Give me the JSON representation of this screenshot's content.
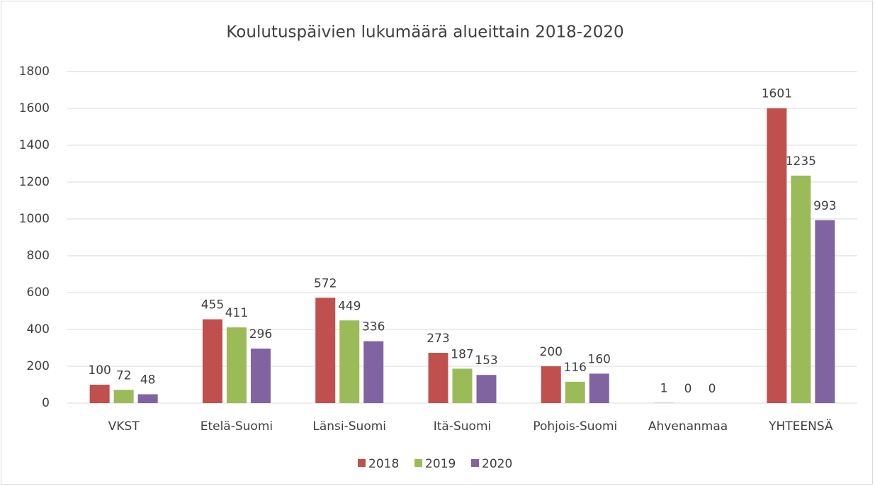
{
  "chart_data": {
    "type": "bar",
    "title": "Koulutuspäivien lukumäärä alueittain 2018-2020",
    "categories": [
      "VKST",
      "Etelä-Suomi",
      "Länsi-Suomi",
      "Itä-Suomi",
      "Pohjois-Suomi",
      "Ahvenanmaa",
      "YHTEENSÄ"
    ],
    "series": [
      {
        "name": "2018",
        "color": "#c0504d",
        "values": [
          100,
          455,
          572,
          273,
          200,
          1,
          1601
        ]
      },
      {
        "name": "2019",
        "color": "#9bbb59",
        "values": [
          72,
          411,
          449,
          187,
          116,
          0,
          1235
        ]
      },
      {
        "name": "2020",
        "color": "#8064a2",
        "values": [
          48,
          296,
          336,
          153,
          160,
          0,
          993
        ]
      }
    ],
    "ylim": [
      0,
      1800
    ],
    "yticks": [
      0,
      200,
      400,
      600,
      800,
      1000,
      1200,
      1400,
      1600,
      1800
    ],
    "grid": true,
    "legend": "bottom"
  }
}
